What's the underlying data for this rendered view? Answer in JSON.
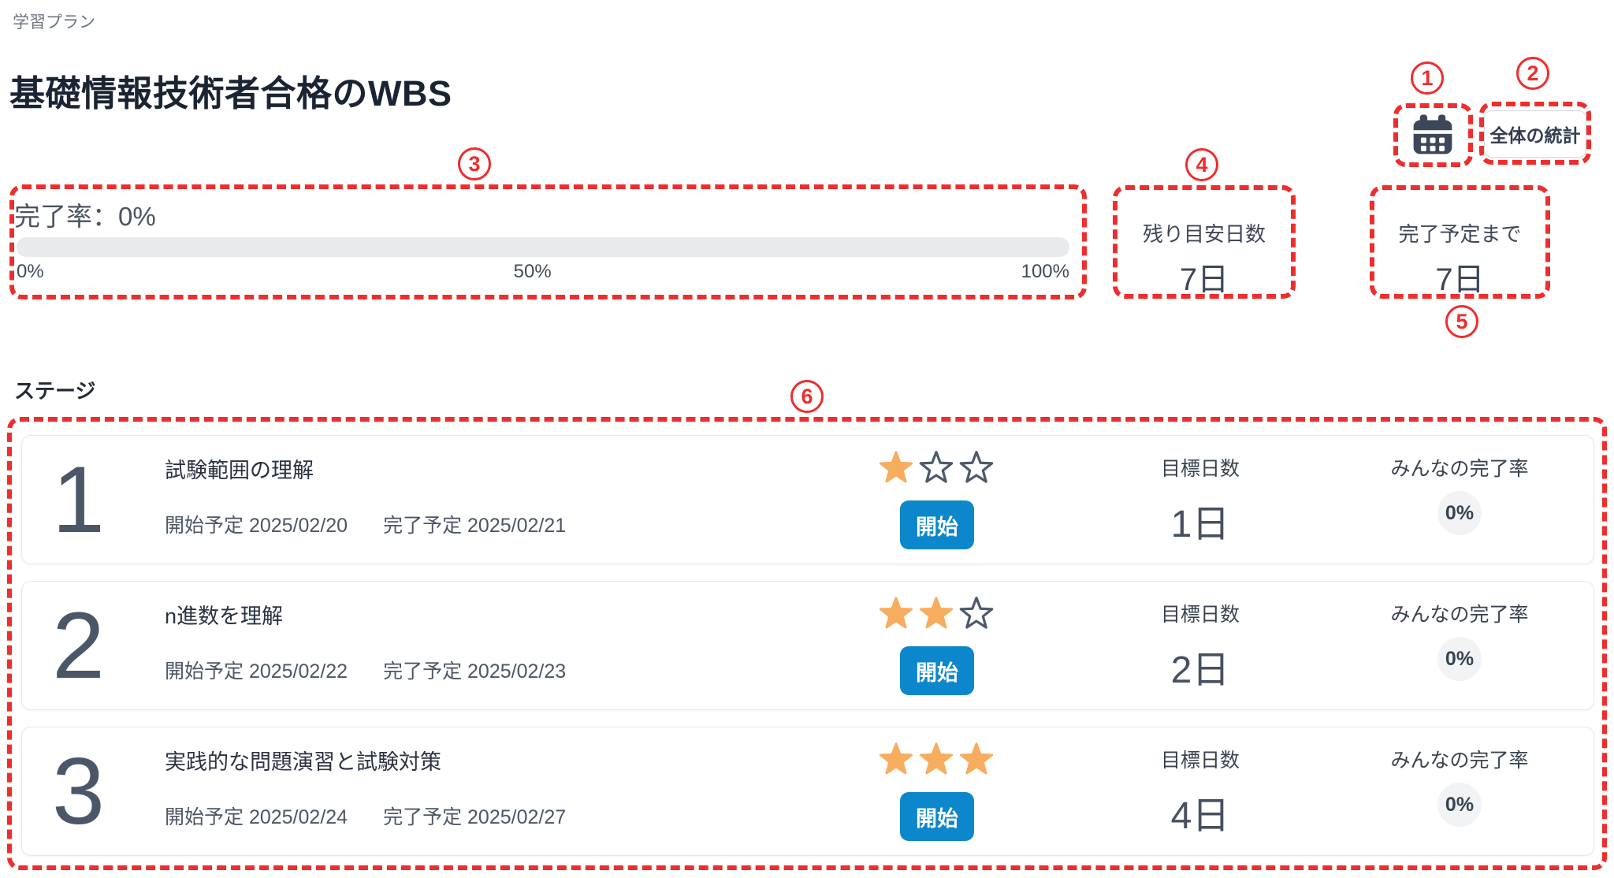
{
  "page": {
    "breadcrumb": "学習プラン",
    "title": "基礎情報技術者合格のWBS"
  },
  "header_actions": {
    "calendar_icon": "calendar-icon",
    "stats_button": "全体の統計"
  },
  "progress": {
    "label": "完了率：0%",
    "percent_complete": 0,
    "ticks": [
      "0%",
      "50%",
      "100%"
    ]
  },
  "summary_stats": [
    {
      "label": "残り目安日数",
      "value": "7日"
    },
    {
      "label": "完了予定まで",
      "value": "7日"
    }
  ],
  "stages": {
    "heading": "ステージ",
    "column_labels": {
      "target_days": "目標日数",
      "everyone_completion": "みんなの完了率"
    },
    "start_button": "開始",
    "items": [
      {
        "number": "1",
        "title": "試験範囲の理解",
        "start_text": "開始予定 2025/02/20",
        "end_text": "完了予定 2025/02/21",
        "difficulty": 1,
        "difficulty_max": 3,
        "target_days": "1日",
        "everyone_completion": "0%"
      },
      {
        "number": "2",
        "title": "n進数を理解",
        "start_text": "開始予定 2025/02/22",
        "end_text": "完了予定 2025/02/23",
        "difficulty": 2,
        "difficulty_max": 3,
        "target_days": "2日",
        "everyone_completion": "0%"
      },
      {
        "number": "3",
        "title": "実践的な問題演習と試験対策",
        "start_text": "開始予定 2025/02/24",
        "end_text": "完了予定 2025/02/27",
        "difficulty": 3,
        "difficulty_max": 3,
        "target_days": "4日",
        "everyone_completion": "0%"
      }
    ]
  },
  "annotations": {
    "markers": [
      "1",
      "2",
      "3",
      "4",
      "5",
      "6"
    ],
    "color": "#ef2d2d"
  },
  "colors": {
    "accent_blue": "#0d87cb",
    "star_orange": "#f7ad60",
    "star_outline": "#4e5a6b",
    "text_dark": "#1b2433",
    "text_slate": "#475263",
    "bar_track": "#e8eaec",
    "badge_bg": "#f2f3f4",
    "annotation_red": "#ef2d2d"
  }
}
